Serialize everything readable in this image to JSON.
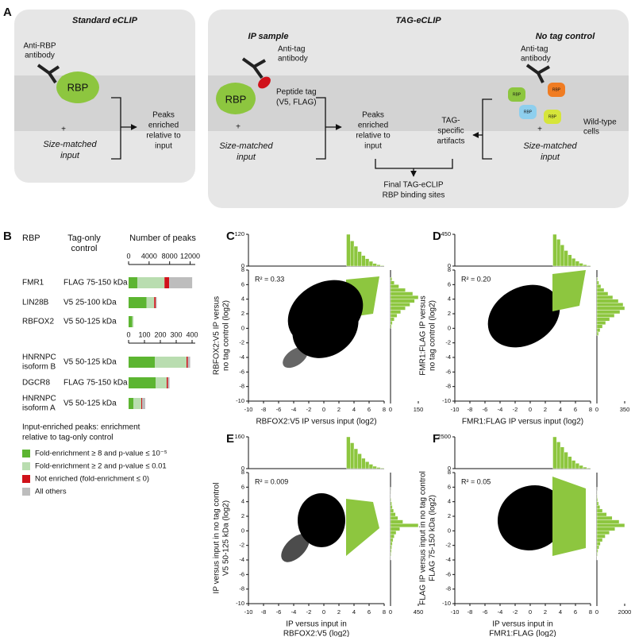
{
  "panel_a": {
    "label": "A",
    "standard": {
      "title": "Standard eCLIP",
      "antibody": [
        "Anti-RBP",
        "antibody"
      ],
      "protein": "RBP",
      "plus": "+",
      "input": [
        "Size-matched",
        "input"
      ],
      "result": [
        "Peaks",
        "enriched",
        "relative to",
        "input"
      ]
    },
    "tag": {
      "title": "TAG-eCLIP",
      "ip_title": "IP sample",
      "ip_antibody": [
        "Anti-tag",
        "antibody"
      ],
      "protein": "RBP",
      "peptide": [
        "Peptide tag",
        "(V5, FLAG)"
      ],
      "plus": "+",
      "ip_input": [
        "Size-matched",
        "input"
      ],
      "peaks": [
        "Peaks",
        "enriched",
        "relative to",
        "input"
      ],
      "artifacts": [
        "TAG-",
        "specific",
        "artifacts"
      ],
      "control_title": "No tag control",
      "control_antibody": [
        "Anti-tag",
        "antibody"
      ],
      "small_rbp": [
        "RBP",
        "RBP",
        "RBP",
        "RBP"
      ],
      "cells": [
        "Wild-type",
        "cells"
      ],
      "control_plus": "+",
      "control_input": [
        "Size-matched",
        "input"
      ],
      "final": [
        "Final TAG-eCLIP",
        "RBP binding sites"
      ]
    }
  },
  "panel_b": {
    "label": "B",
    "headers": {
      "rbp": "RBP",
      "control": [
        "Tag-only",
        "control"
      ],
      "peaks": "Number of peaks"
    },
    "legend_title": [
      "Input-enriched peaks: enrichment",
      "relative to tag-only control"
    ],
    "series": [
      {
        "name": "Fold-enrichment ≥ 8 and p-value ≤ 10⁻⁵",
        "color": "#5cb531"
      },
      {
        "name": "Fold-enrichment ≥ 2 and p-value ≤ 0.01",
        "color": "#b9ddb0"
      },
      {
        "name": "Not enriched (fold-enrichment ≤ 0)",
        "color": "#d0121b"
      },
      {
        "name": "All others",
        "color": "#bdbdbd"
      }
    ],
    "groups": [
      {
        "xlim": [
          0,
          13000
        ],
        "xticks": [
          0,
          4000,
          8000,
          12000
        ],
        "rows": [
          {
            "rbp": [
              "FMR1"
            ],
            "control": "FLAG 75-150 kDa",
            "values": [
              1700,
              5300,
              900,
              4500
            ]
          },
          {
            "rbp": [
              "LIN28B"
            ],
            "control": "V5 25-100 kDa",
            "values": [
              3500,
              1500,
              300,
              200
            ]
          },
          {
            "rbp": [
              "RBFOX2"
            ],
            "control": "V5 50-125 kDa",
            "values": [
              700,
              250,
              0,
              0
            ]
          }
        ]
      },
      {
        "xlim": [
          0,
          420
        ],
        "xticks": [
          0,
          100,
          200,
          300,
          400
        ],
        "rows": [
          {
            "rbp": [
              "HNRNPC",
              "isoform B"
            ],
            "control": "V5 50-125 kDa",
            "values": [
              165,
              200,
              8,
              15
            ]
          },
          {
            "rbp": [
              "DGCR8"
            ],
            "control": "FLAG 75-150 kDa",
            "values": [
              170,
              70,
              8,
              10
            ]
          },
          {
            "rbp": [
              "HNRNPC",
              "isoform A"
            ],
            "control": "V5 50-125 kDa",
            "values": [
              30,
              50,
              5,
              20
            ]
          }
        ]
      }
    ]
  },
  "scatter_panels": [
    {
      "type": "scatter",
      "label": "C",
      "annotation": "R² = 0.33",
      "xlabel": [
        "RBFOX2:V5 IP versus input (log2)"
      ],
      "ylabel": [
        "RBFOX2:V5 IP versus",
        "no tag control (log2)"
      ],
      "xlim": [
        -10,
        8
      ],
      "xticks": [
        -10,
        -8,
        -6,
        -4,
        -2,
        0,
        2,
        4,
        6,
        8
      ],
      "ylim": [
        -10,
        8
      ],
      "yticks": [
        -10,
        -8,
        -6,
        -4,
        -2,
        0,
        2,
        4,
        6,
        8
      ],
      "top_hist": {
        "color": "#8dc63f",
        "ylim": [
          0,
          120
        ],
        "yticks": [
          0,
          120
        ],
        "bins": [
          3,
          3.5,
          4,
          4.5,
          5,
          5.5,
          6,
          6.5,
          7,
          7.5,
          8
        ],
        "values": [
          120,
          95,
          75,
          55,
          40,
          28,
          18,
          10,
          5,
          2
        ]
      },
      "right_hist": {
        "color": "#8dc63f",
        "xlim": [
          0,
          150
        ],
        "xticks": [
          0,
          150
        ],
        "bins": [
          0,
          0.5,
          1,
          1.5,
          2,
          2.5,
          3,
          3.5,
          4,
          4.5,
          5,
          5.5,
          6,
          6.5,
          7
        ],
        "values": [
          5,
          10,
          20,
          35,
          55,
          80,
          105,
          130,
          150,
          120,
          80,
          45,
          20,
          8
        ]
      }
    },
    {
      "type": "scatter",
      "label": "D",
      "annotation": "R² = 0.20",
      "xlabel": [
        "FMR1:FLAG IP versus input (log2)"
      ],
      "ylabel": [
        "FMR1:FLAG IP versus",
        "no tag control (log2)"
      ],
      "xlim": [
        -10,
        8
      ],
      "xticks": [
        -10,
        -8,
        -6,
        -4,
        -2,
        0,
        2,
        4,
        6,
        8
      ],
      "ylim": [
        -10,
        8
      ],
      "yticks": [
        -10,
        -8,
        -6,
        -4,
        -2,
        0,
        2,
        4,
        6,
        8
      ],
      "top_hist": {
        "color": "#8dc63f",
        "ylim": [
          0,
          450
        ],
        "yticks": [
          0,
          450
        ],
        "bins": [
          3,
          3.5,
          4,
          4.5,
          5,
          5.5,
          6,
          6.5,
          7,
          7.5,
          8
        ],
        "values": [
          450,
          380,
          300,
          220,
          160,
          110,
          70,
          40,
          20,
          8
        ]
      },
      "right_hist": {
        "color": "#8dc63f",
        "xlim": [
          0,
          350
        ],
        "xticks": [
          0,
          350
        ],
        "bins": [
          -1,
          -0.5,
          0,
          0.5,
          1,
          1.5,
          2,
          2.5,
          3,
          3.5,
          4,
          4.5,
          5,
          5.5,
          6,
          6.5,
          7
        ],
        "values": [
          20,
          40,
          70,
          110,
          160,
          220,
          290,
          350,
          330,
          270,
          200,
          140,
          90,
          50,
          25,
          10
        ]
      }
    },
    {
      "type": "scatter",
      "label": "E",
      "annotation": "R² = 0.009",
      "xlabel": [
        "IP versus input in",
        "RBFOX2:V5 (log2)"
      ],
      "ylabel": [
        "IP versus input in no tag control",
        "V5 50-125 kDa (log2)"
      ],
      "xlim": [
        -10,
        8
      ],
      "xticks": [
        -10,
        -8,
        -6,
        -4,
        -2,
        0,
        2,
        4,
        6,
        8
      ],
      "ylim": [
        -10,
        8
      ],
      "yticks": [
        -10,
        -8,
        -6,
        -4,
        -2,
        0,
        2,
        4,
        6,
        8
      ],
      "top_hist": {
        "color": "#8dc63f",
        "ylim": [
          0,
          160
        ],
        "yticks": [
          0,
          160
        ],
        "bins": [
          3,
          3.5,
          4,
          4.5,
          5,
          5.5,
          6,
          6.5,
          7,
          7.5,
          8
        ],
        "values": [
          160,
          130,
          100,
          75,
          52,
          35,
          22,
          12,
          6,
          3
        ]
      },
      "right_hist": {
        "color": "#8dc63f",
        "xlim": [
          0,
          450
        ],
        "xticks": [
          0,
          450
        ],
        "bins": [
          -4,
          -3.5,
          -3,
          -2.5,
          -2,
          -1.5,
          -1,
          -0.5,
          0,
          0.5,
          1,
          1.5,
          2,
          2.5,
          3,
          3.5,
          4,
          4.5,
          5,
          5.5,
          6
        ],
        "values": [
          5,
          10,
          15,
          20,
          30,
          40,
          60,
          90,
          150,
          450,
          200,
          120,
          80,
          50,
          30,
          20,
          10,
          5,
          3,
          2
        ]
      }
    },
    {
      "type": "scatter",
      "label": "F",
      "annotation": "R² = 0.05",
      "xlabel": [
        "IP versus input in",
        "FMR1:FLAG (log2)"
      ],
      "ylabel": [
        "FLAG IP versus input in no tag control",
        "FLAG 75-150 kDa (log2)"
      ],
      "xlim": [
        -10,
        8
      ],
      "xticks": [
        -10,
        -8,
        -6,
        -4,
        -2,
        0,
        2,
        4,
        6,
        8
      ],
      "ylim": [
        -10,
        8
      ],
      "yticks": [
        -10,
        -8,
        -6,
        -4,
        -2,
        0,
        2,
        4,
        6,
        8
      ],
      "top_hist": {
        "color": "#8dc63f",
        "ylim": [
          0,
          2500
        ],
        "yticks": [
          0,
          2500
        ],
        "bins": [
          3,
          3.5,
          4,
          4.5,
          5,
          5.5,
          6,
          6.5,
          7,
          7.5,
          8
        ],
        "values": [
          2500,
          2100,
          1700,
          1300,
          950,
          650,
          420,
          250,
          120,
          50
        ]
      },
      "right_hist": {
        "color": "#8dc63f",
        "xlim": [
          0,
          2000
        ],
        "xticks": [
          0,
          2000
        ],
        "bins": [
          -4,
          -3.5,
          -3,
          -2.5,
          -2,
          -1.5,
          -1,
          -0.5,
          0,
          0.5,
          1,
          1.5,
          2,
          2.5,
          3,
          3.5,
          4,
          4.5,
          5,
          5.5,
          6
        ],
        "values": [
          20,
          40,
          80,
          150,
          250,
          400,
          600,
          900,
          1300,
          2000,
          1600,
          1100,
          700,
          400,
          220,
          120,
          60,
          30,
          15,
          5
        ]
      }
    }
  ]
}
